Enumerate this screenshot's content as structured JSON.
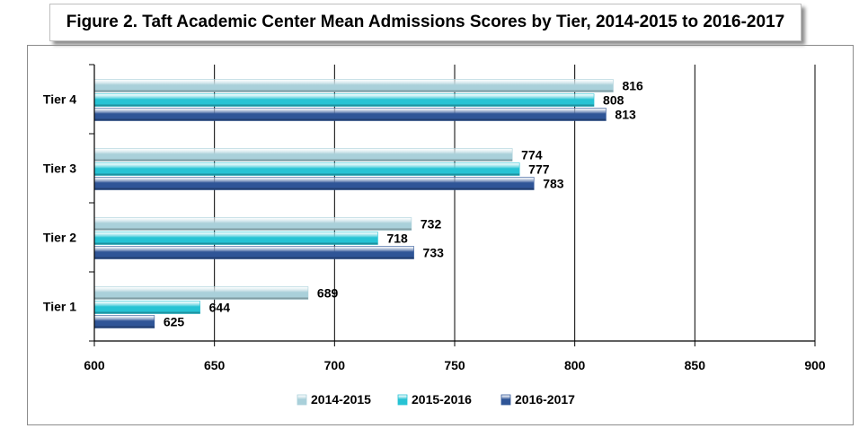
{
  "title": "Figure 2. Taft Academic Center Mean Admissions Scores by Tier, 2014-2015 to 2016-2017",
  "chart_data": {
    "type": "bar",
    "orientation": "horizontal",
    "title": "Figure 2. Taft Academic Center Mean Admissions Scores by Tier, 2014-2015 to 2016-2017",
    "categories": [
      "Tier 4",
      "Tier 3",
      "Tier 2",
      "Tier 1"
    ],
    "series": [
      {
        "name": "2014-2015",
        "values": [
          816,
          774,
          732,
          689
        ],
        "color": "#a9d0da"
      },
      {
        "name": "2015-2016",
        "values": [
          808,
          777,
          718,
          644
        ],
        "color": "#27c3d4"
      },
      {
        "name": "2016-2017",
        "values": [
          813,
          783,
          733,
          625
        ],
        "color": "#2f5597"
      }
    ],
    "xlim": [
      600,
      900
    ],
    "xticks": [
      600,
      650,
      700,
      750,
      800,
      850,
      900
    ],
    "grid": true,
    "legend_position": "bottom"
  }
}
